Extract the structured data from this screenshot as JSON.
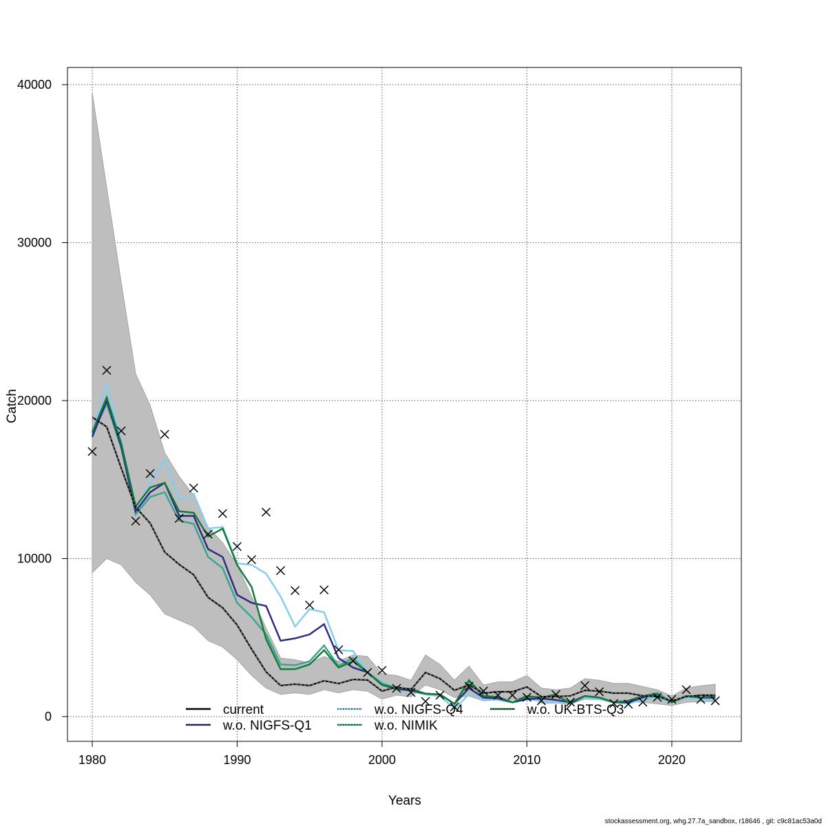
{
  "chart_data": {
    "type": "line",
    "xlabel": "Years",
    "ylabel": "Catch",
    "xlim": [
      1978.4,
      2024.6
    ],
    "ylim": [
      -1500,
      41000
    ],
    "grid": true,
    "legend_placement": "bottom",
    "x_ticks": [
      1980,
      1990,
      2000,
      2010,
      2020
    ],
    "y_ticks": [
      0,
      10000,
      20000,
      30000,
      40000
    ],
    "x_tick_labels": [
      "1980",
      "1990",
      "2000",
      "2010",
      "2020"
    ],
    "y_tick_labels": [
      "0",
      "10000",
      "20000",
      "30000",
      "40000"
    ],
    "x": [
      1980,
      1981,
      1982,
      1983,
      1984,
      1985,
      1986,
      1987,
      1988,
      1989,
      1990,
      1991,
      1992,
      1993,
      1994,
      1995,
      1996,
      1997,
      1998,
      1999,
      2000,
      2001,
      2002,
      2003,
      2004,
      2005,
      2006,
      2007,
      2008,
      2009,
      2010,
      2011,
      2012,
      2013,
      2014,
      2015,
      2016,
      2017,
      2018,
      2019,
      2020,
      2021,
      2022,
      2023
    ],
    "observed": [
      16775,
      21917,
      18083,
      12375,
      15381,
      17865,
      12549,
      14466,
      11547,
      12854,
      10763,
      9935,
      12941,
      9237,
      7974,
      7059,
      8017,
      4227,
      3529,
      2789,
      2919,
      1786,
      1525,
      960,
      1350,
      610,
      1917,
      1612,
      1350,
      1350,
      1220,
      1000,
      1394,
      915,
      1960,
      1568,
      828,
      784,
      915,
      1220,
      1090,
      1700,
      1090,
      1000
    ],
    "ci_upper": [
      39500,
      33500,
      27500,
      21700,
      19700,
      16700,
      15200,
      14000,
      12000,
      11000,
      9600,
      7600,
      5600,
      3700,
      3600,
      3400,
      3800,
      3500,
      3900,
      3800,
      2700,
      2600,
      2300,
      3900,
      3300,
      2300,
      3200,
      2000,
      2200,
      2200,
      2600,
      1800,
      1700,
      1800,
      2400,
      2300,
      2100,
      2100,
      1900,
      1700,
      1300,
      1800,
      1950,
      2050
    ],
    "ci_lower": [
      9100,
      10000,
      9600,
      8500,
      7700,
      6500,
      6100,
      5700,
      4800,
      4400,
      3600,
      2600,
      1800,
      1400,
      1500,
      1400,
      1700,
      1500,
      1700,
      1600,
      1100,
      1350,
      1250,
      2000,
      1700,
      1200,
      1300,
      1000,
      1050,
      1050,
      1300,
      850,
      850,
      800,
      1100,
      1050,
      1000,
      950,
      900,
      800,
      700,
      900,
      950,
      950
    ],
    "series": [
      {
        "name": "current",
        "color": "#000000",
        "values": [
          18950,
          18340,
          15730,
          13250,
          12240,
          10410,
          9630,
          8975,
          7540,
          6885,
          5800,
          4270,
          2830,
          1960,
          2050,
          1960,
          2265,
          2090,
          2350,
          2310,
          1610,
          1870,
          1700,
          2790,
          2400,
          1660,
          2000,
          1480,
          1570,
          1570,
          1870,
          1260,
          1260,
          1310,
          1660,
          1610,
          1480,
          1480,
          1310,
          1260,
          1000,
          1260,
          1350,
          1350
        ]
      },
      {
        "name": "w.o. NIGFS-Q1",
        "color": "#2e2a86",
        "values": [
          17700,
          20000,
          17100,
          13000,
          14200,
          14800,
          12700,
          12700,
          10600,
          10100,
          7700,
          7200,
          7000,
          4800,
          4950,
          5200,
          5850,
          3700,
          3100,
          2800,
          2000,
          1750,
          1650,
          1450,
          1400,
          800,
          1800,
          1200,
          1150,
          900,
          1100,
          1150,
          1050,
          900,
          1300,
          1200,
          900,
          900,
          1200,
          1400,
          900,
          1300,
          1200,
          1200
        ]
      },
      {
        "name": "w.o. NIGFS-Q4",
        "color": "#87ceeb",
        "values": [
          17900,
          21100,
          17400,
          12900,
          14800,
          16300,
          13700,
          14100,
          11900,
          12000,
          9700,
          9600,
          9050,
          7600,
          5700,
          6800,
          6600,
          4200,
          4150,
          2700,
          2200,
          1700,
          1600,
          1400,
          1300,
          500,
          1400,
          1100,
          1050,
          900,
          1100,
          1000,
          900,
          900,
          1200,
          1100,
          900,
          800,
          1100,
          1200,
          900,
          1200,
          1100,
          1100
        ]
      },
      {
        "name": "w.o. NIMIK",
        "color": "#3aa58f",
        "values": [
          17900,
          19800,
          17000,
          12800,
          13900,
          14200,
          12400,
          12200,
          10100,
          9400,
          7200,
          6300,
          5200,
          3300,
          3250,
          3500,
          4500,
          3200,
          3700,
          2800,
          2100,
          1800,
          1700,
          1450,
          1400,
          800,
          2200,
          1250,
          1200,
          900,
          1200,
          1200,
          1300,
          900,
          1300,
          1200,
          900,
          1000,
          1300,
          1500,
          900,
          1300,
          1200,
          1300
        ]
      },
      {
        "name": "w.o. UK-BTS-Q3",
        "color": "#157a3a",
        "values": [
          18000,
          20200,
          17300,
          13300,
          14500,
          14800,
          13000,
          12900,
          11400,
          11900,
          9600,
          8200,
          4900,
          3000,
          3000,
          3300,
          4200,
          3100,
          3500,
          2800,
          2000,
          1800,
          1750,
          1450,
          1400,
          800,
          2300,
          1300,
          1250,
          900,
          1300,
          1200,
          1400,
          800,
          1300,
          1200,
          900,
          1000,
          1300,
          1400,
          900,
          1300,
          1200,
          1300
        ]
      }
    ]
  },
  "footer": "stockassessment.org, whg.27.7a_sandbox, r18646 , git: c9c81ac53a0d"
}
